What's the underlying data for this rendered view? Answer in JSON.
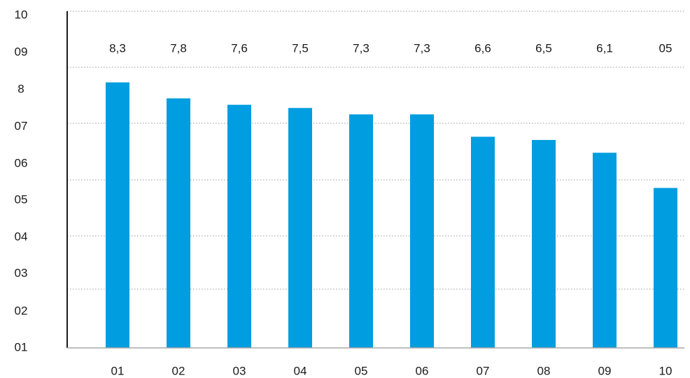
{
  "chart_data": {
    "type": "bar",
    "categories": [
      "01",
      "02",
      "03",
      "04",
      "05",
      "06",
      "07",
      "08",
      "09",
      "10"
    ],
    "values": [
      8.3,
      7.8,
      7.6,
      7.5,
      7.3,
      7.3,
      6.6,
      6.5,
      6.1,
      5.0
    ],
    "data_labels": [
      "8,3",
      "7,8",
      "7,6",
      "7,5",
      "7,3",
      "7,3",
      "6,6",
      "6,5",
      "6,1",
      "05"
    ],
    "y_tick_labels": [
      "01",
      "02",
      "03",
      "04",
      "05",
      "06",
      "07",
      "8",
      "09",
      "10"
    ],
    "y_ticks": [
      1,
      2,
      3,
      4,
      5,
      6,
      7,
      8,
      9,
      10
    ],
    "ylim": [
      0,
      10
    ],
    "title": "",
    "xlabel": "",
    "ylabel": "",
    "grid": true,
    "legend": "none",
    "bar_color": "#009de0",
    "grid_color": "#9a9a9a",
    "axis_color": "#1a1a1a"
  }
}
